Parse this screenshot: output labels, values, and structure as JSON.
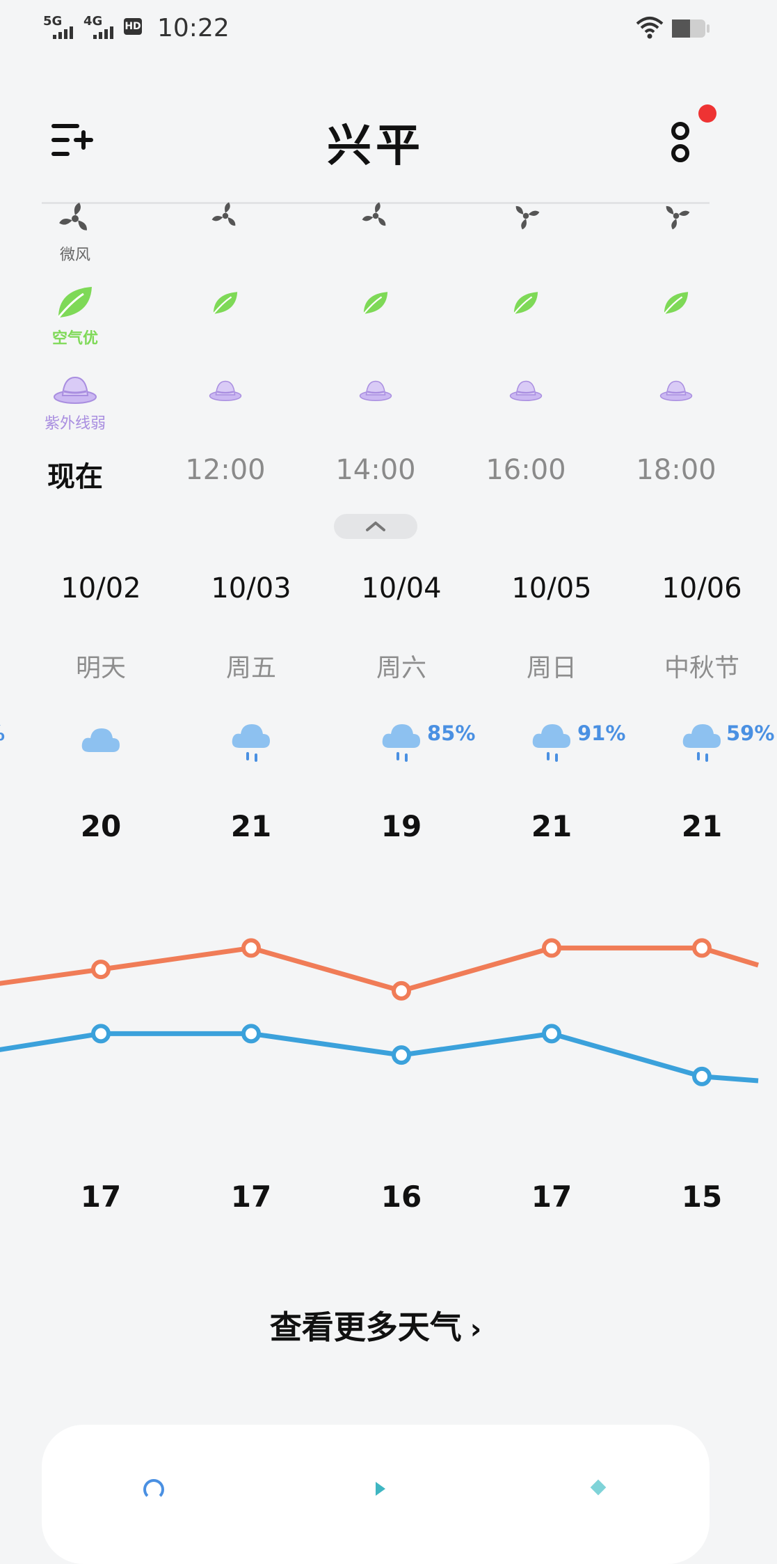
{
  "status_bar": {
    "time": "10:22",
    "sim1_network": "5G",
    "sim2_network": "4G",
    "hd_badge": "HD",
    "battery_level": 0.55
  },
  "header": {
    "city": "兴平",
    "menu_icon": "add-city-icon",
    "more_icon": "more-icon"
  },
  "hourly": {
    "wind_label": "微风",
    "air_label": "空气优",
    "uv_label": "紫外线弱",
    "times": [
      "现在",
      "12:00",
      "14:00",
      "16:00",
      "18:00"
    ]
  },
  "daily": {
    "dates": [
      "10/02",
      "10/03",
      "10/04",
      "10/05",
      "10/06"
    ],
    "days": [
      "明天",
      "周五",
      "周六",
      "周日",
      "中秋节"
    ],
    "weather_icons": [
      "cloudy-icon",
      "rain-icon",
      "rain-icon",
      "rain-icon",
      "rain-icon"
    ],
    "precip": [
      "",
      "",
      "85%",
      "91%",
      "59%"
    ],
    "left_edge_precip": "%",
    "highs": [
      "20",
      "21",
      "19",
      "21",
      "21"
    ],
    "lows": [
      "17",
      "17",
      "16",
      "17",
      "15"
    ]
  },
  "chart_data": {
    "type": "line",
    "x": [
      "10/02",
      "10/03",
      "10/04",
      "10/05",
      "10/06"
    ],
    "series": [
      {
        "values": [
          20,
          21,
          19,
          21,
          21
        ]
      },
      {
        "values": [
          17,
          17,
          16,
          17,
          15
        ]
      }
    ],
    "offscreen_left": {
      "high": 19.3,
      "low": 16.2
    },
    "offscreen_right": {
      "high": 20.2,
      "low": 14.8
    }
  },
  "footer": {
    "more_weather": "查看更多天气"
  },
  "colors": {
    "high_line": "#f07c57",
    "low_line": "#3ba1db",
    "air_green": "#7ed957",
    "uv_purple": "#a98ee0",
    "precip_blue": "#4a90e2",
    "red_dot": "#ee3333"
  }
}
